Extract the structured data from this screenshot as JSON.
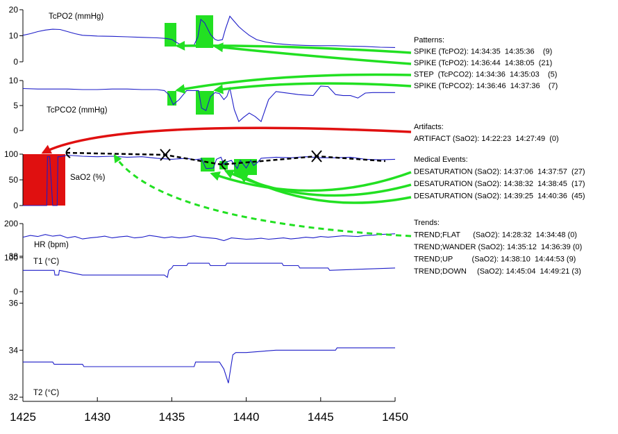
{
  "chart_data": {
    "type": "line",
    "x_axis": {
      "ticks": [
        "1425",
        "1430",
        "1435",
        "1440",
        "1445",
        "1450"
      ],
      "xlim": [
        1425,
        1450
      ]
    },
    "panels": [
      {
        "key": "tcpo2",
        "label": "TcPO2 (mmHg)",
        "ylim": [
          0,
          20
        ],
        "ytick_vals": [
          0,
          10,
          20
        ],
        "ytick_labels": [
          "0",
          "10",
          "20"
        ],
        "series": [
          {
            "x": [
              1425,
              1425.5,
              1426,
              1426.5,
              1427,
              1427.5,
              1428,
              1428.5,
              1429,
              1430,
              1431,
              1432,
              1433,
              1434,
              1434.6,
              1435,
              1435.3,
              1435.6,
              1436,
              1436.5,
              1436.75,
              1436.95,
              1437.2,
              1437.6,
              1437.9,
              1438.1,
              1438.4,
              1438.6,
              1438.9,
              1439.2,
              1439.5,
              1439.8,
              1440.2,
              1440.7,
              1441.3,
              1442,
              1443,
              1444,
              1445,
              1446,
              1447,
              1448,
              1449,
              1450
            ],
            "y": [
              10.2,
              10.8,
              11.6,
              12.2,
              12.5,
              12.4,
              11.6,
              10.8,
              10.2,
              9.9,
              9.8,
              9.6,
              9.4,
              9.2,
              9,
              8.6,
              7.5,
              6.6,
              6.4,
              6.5,
              9.5,
              16.3,
              15,
              10.5,
              8.6,
              8.2,
              8.5,
              12.5,
              17.5,
              15.5,
              13.5,
              12,
              10.2,
              8.5,
              7.6,
              7,
              6.5,
              6.3,
              6.2,
              6.2,
              6,
              5.9,
              5.6,
              5.5
            ]
          }
        ]
      },
      {
        "key": "tcpco2",
        "label": "TcPCO2 (mmHg)",
        "ylim": [
          0,
          10
        ],
        "ytick_vals": [
          0,
          5,
          10
        ],
        "ytick_labels": [
          "0",
          "5",
          "10"
        ],
        "series": [
          {
            "x": [
              1425,
              1426,
              1427,
              1428,
              1429,
              1430,
              1431,
              1432,
              1433,
              1434,
              1434.5,
              1434.8,
              1435.1,
              1435.5,
              1436,
              1436.5,
              1436.8,
              1437,
              1437.3,
              1437.6,
              1437.9,
              1438.2,
              1438.5,
              1438.7,
              1438.9,
              1439.2,
              1439.5,
              1439.8,
              1440.2,
              1440.6,
              1441,
              1441.5,
              1442,
              1442.5,
              1443,
              1443.5,
              1444,
              1444.5,
              1445,
              1445.5,
              1446,
              1446.5,
              1447,
              1447.5,
              1448,
              1448.5,
              1449,
              1450
            ],
            "y": [
              8.4,
              8.3,
              8.3,
              8.3,
              8.2,
              8.2,
              8.3,
              8.3,
              8.2,
              8.2,
              8,
              7.2,
              5.2,
              6.2,
              8,
              8,
              8,
              4.5,
              4,
              6.8,
              7.6,
              7.4,
              6.2,
              6.8,
              8.5,
              4.2,
              1.8,
              2.6,
              3.5,
              2.8,
              1.8,
              6.2,
              7.8,
              7.6,
              7.4,
              7.2,
              7.1,
              7,
              8.9,
              8.8,
              7.2,
              7,
              7,
              6.5,
              7.5,
              7.6,
              7.6,
              7.6
            ]
          }
        ]
      },
      {
        "key": "sao2",
        "label": "SaO2 (%)",
        "ylim": [
          0,
          100
        ],
        "ytick_vals": [
          0,
          50,
          100
        ],
        "ytick_labels": [
          "0",
          "50",
          "100"
        ],
        "series": [
          {
            "x": [
              1425,
              1426,
              1426.6,
              1426.65,
              1426.8,
              1427,
              1427.3,
              1427.35,
              1427.5,
              1428,
              1429,
              1430,
              1431,
              1432,
              1433,
              1434,
              1435,
              1436,
              1436.5,
              1437,
              1437.3,
              1437.8,
              1438,
              1438.3,
              1438.5,
              1438.7,
              1439,
              1439.4,
              1439.6,
              1440,
              1440.3,
              1440.5,
              1440.8,
              1441,
              1442,
              1443,
              1444,
              1445,
              1446,
              1447,
              1448,
              1449,
              1450
            ],
            "y": [
              0,
              0,
              0,
              95,
              95,
              0,
              0,
              95,
              95,
              98,
              96,
              95,
              96,
              94,
              95,
              92,
              90,
              92,
              89,
              91,
              72,
              73,
              90,
              94,
              80,
              85,
              88,
              72,
              88,
              73,
              88,
              78,
              85,
              92,
              94,
              93,
              95,
              93,
              93,
              94,
              90,
              89,
              90
            ]
          }
        ]
      },
      {
        "key": "hr",
        "label": "HR (bpm)",
        "ylim": [
          0,
          200
        ],
        "ytick_vals": [
          0,
          100,
          200
        ],
        "ytick_labels": [
          "0",
          "100",
          "200"
        ],
        "series": [
          {
            "x": [
              1425,
              1425.5,
              1426,
              1426.5,
              1427,
              1427.5,
              1428,
              1428.5,
              1429,
              1429.5,
              1430,
              1430.5,
              1431,
              1431.5,
              1432,
              1432.5,
              1433,
              1433.5,
              1434,
              1434.5,
              1435,
              1435.5,
              1436,
              1436.5,
              1437,
              1437.5,
              1438,
              1438.5,
              1439,
              1439.5,
              1440,
              1440.5,
              1441,
              1441.5,
              1442,
              1442.5,
              1443,
              1443.5,
              1444,
              1444.5,
              1445,
              1445.5,
              1446,
              1446.5,
              1447,
              1447.5,
              1448,
              1448.5,
              1449,
              1449.5,
              1450
            ],
            "y": [
              160,
              165,
              162,
              168,
              163,
              166,
              158,
              162,
              155,
              158,
              160,
              163,
              158,
              161,
              163,
              158,
              160,
              165,
              162,
              158,
              161,
              158,
              160,
              164,
              160,
              158,
              156,
              150,
              158,
              156,
              154,
              155,
              157,
              154,
              156,
              158,
              155,
              157,
              160,
              158,
              162,
              160,
              162,
              164,
              163,
              162,
              165,
              166,
              168,
              169,
              170
            ]
          }
        ]
      },
      {
        "key": "temp",
        "label_t1": "T1 (°C)",
        "label_t2": "T2 (°C)",
        "ylim": [
          32,
          38
        ],
        "ytick_vals": [
          32,
          34,
          36,
          38
        ],
        "ytick_labels": [
          "32",
          "34",
          "36",
          "38"
        ],
        "series": [
          {
            "name": "T1 (°C)",
            "x": [
              1425,
              1427.1,
              1427.15,
              1427.4,
              1427.45,
              1429,
              1434.5,
              1434.7,
              1434.8,
              1435,
              1435.1,
              1436,
              1436.1,
              1437.5,
              1437.6,
              1438.6,
              1438.7,
              1442.4,
              1442.5,
              1443.5,
              1443.6,
              1445.5,
              1445.6,
              1450
            ],
            "y": [
              37.4,
              37.4,
              37.2,
              37.2,
              37.4,
              37.2,
              37.2,
              37.1,
              37.4,
              37.5,
              37.6,
              37.6,
              37.7,
              37.7,
              37.6,
              37.6,
              37.7,
              37.7,
              37.6,
              37.6,
              37.5,
              37.5,
              37.4,
              37.5
            ]
          },
          {
            "name": "T2 (°C)",
            "x": [
              1425,
              1427,
              1427.1,
              1429,
              1429.1,
              1436.5,
              1436.6,
              1438.2,
              1438.5,
              1438.8,
              1438.9,
              1439.1,
              1439.3,
              1440,
              1442,
              1446,
              1446.1,
              1450
            ],
            "y": [
              33.5,
              33.5,
              33.4,
              33.4,
              33.3,
              33.3,
              33.5,
              33.5,
              33.2,
              32.6,
              33,
              33.8,
              33.9,
              33.9,
              34,
              34,
              34.1,
              34.1
            ]
          }
        ]
      }
    ],
    "annotations": {
      "patterns_title": "Patterns:",
      "patterns": [
        "SPIKE (TcPO2): 14:34:35  14:35:36    (9)",
        "SPIKE (TcPO2): 14:36:44  14:38:05  (21)",
        "STEP  (TcPCO2): 14:34:36  14:35:03    (5)",
        "SPIKE (TcPCO2): 14:36:46  14:37:36    (7)"
      ],
      "artifacts_title": "Artifacts:",
      "artifacts": [
        "ARTIFACT (SaO2): 14:22:23  14:27:49  (0)"
      ],
      "medical_title": "Medical Events:",
      "medical": [
        "DESATURATION (SaO2): 14:37:06  14:37:57  (27)",
        "DESATURATION (SaO2): 14:38:32  14:38:45  (17)",
        "DESATURATION (SaO2): 14:39:25  14:40:36  (45)"
      ],
      "trends_title": "Trends:",
      "trends": [
        "TREND;FLAT      (SaO2): 14:28:32  14:34:48 (0)",
        "TREND;WANDER (SaO2): 14:35:12  14:36:39 (0)",
        "TREND;UP         (SaO2): 14:38:10  14:44:53 (9)",
        "TREND;DOWN     (SaO2): 14:45:04  14:49:21 (3)"
      ]
    },
    "colors": {
      "signal": "#1c1cc8",
      "pattern": "#22e022",
      "artifact": "#e01010",
      "trend": "#000000"
    }
  }
}
